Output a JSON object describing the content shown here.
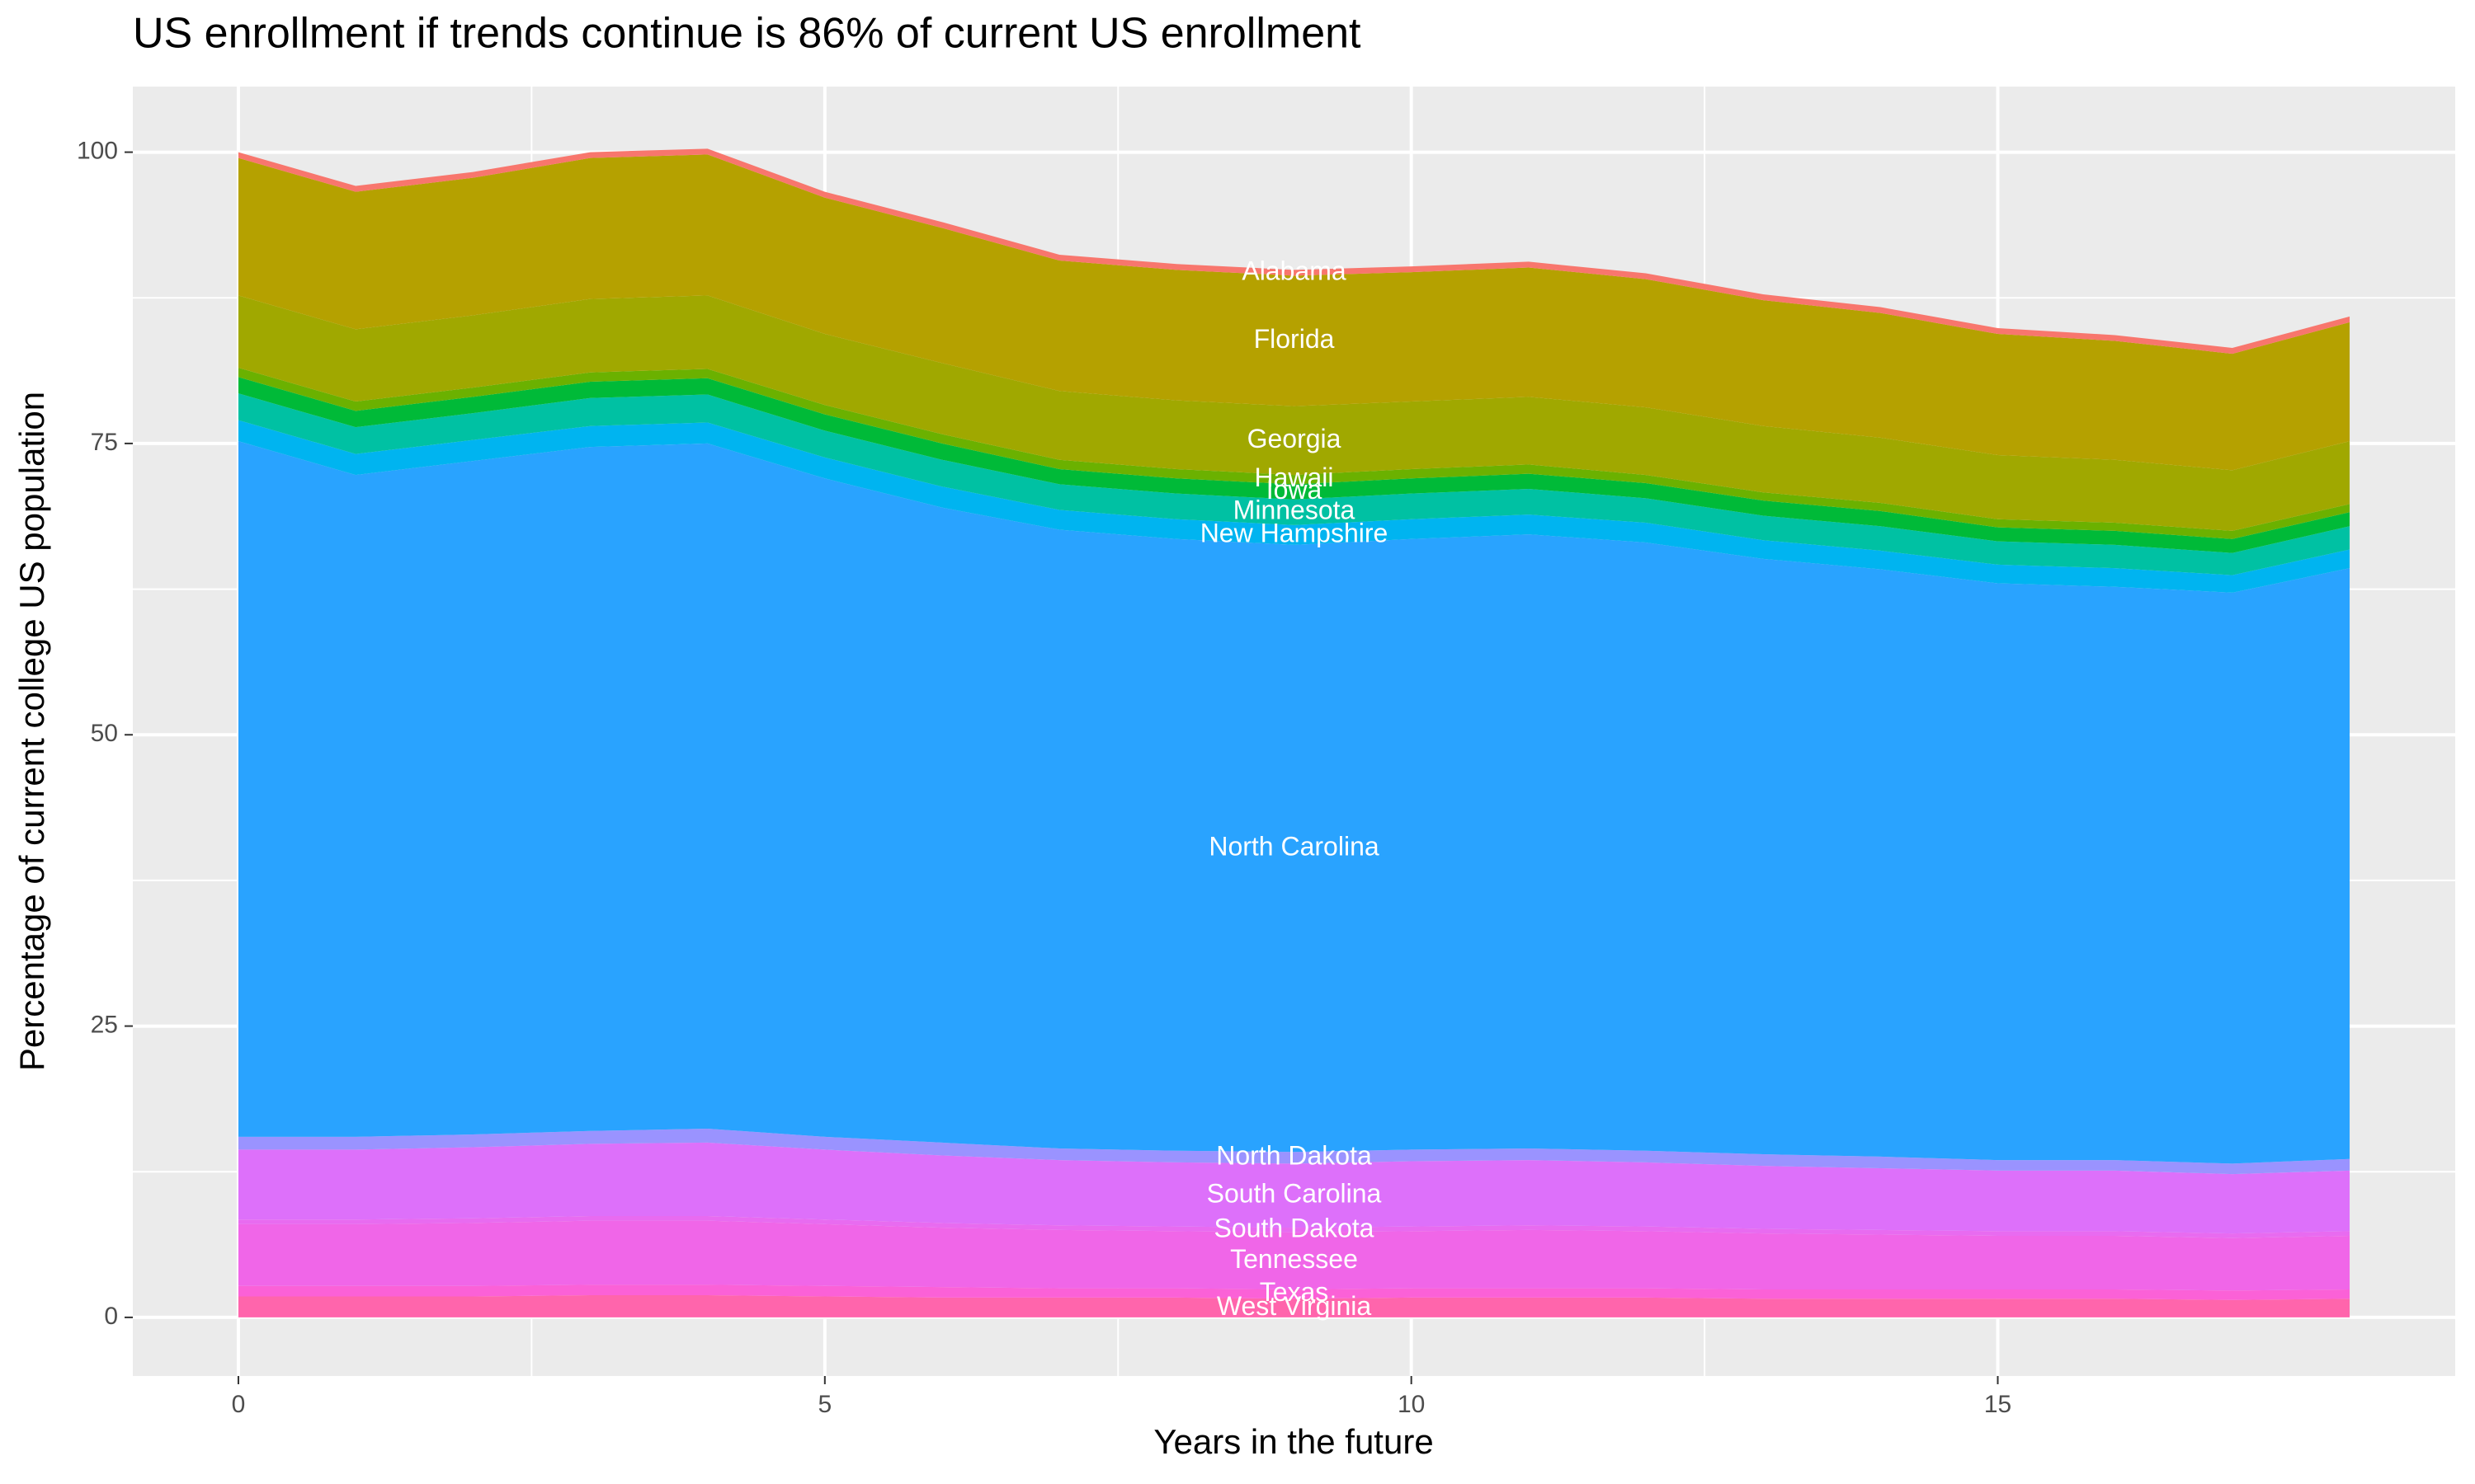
{
  "chart_data": {
    "type": "stacked_area",
    "title": "US enrollment if trends continue is 86% of current US enrollment",
    "x_label": "Years in the future",
    "y_label": "Percentage of current college US population",
    "x": [
      0,
      1,
      2,
      3,
      4,
      5,
      6,
      7,
      8,
      9,
      10,
      11,
      12,
      13,
      14,
      15,
      16,
      17,
      18
    ],
    "xlim": [
      -0.9,
      18.9
    ],
    "xticks": [
      0,
      5,
      10,
      15
    ],
    "ylim": [
      -5.03,
      105.63
    ],
    "yticks": [
      0,
      25,
      50,
      75,
      100
    ],
    "grid": true,
    "series": [
      {
        "name": "West Virginia",
        "color": "#ff65ac",
        "values": [
          1.8,
          1.8,
          1.8,
          1.9,
          1.9,
          1.8,
          1.7,
          1.7,
          1.7,
          1.6,
          1.7,
          1.7,
          1.7,
          1.6,
          1.6,
          1.6,
          1.6,
          1.5,
          1.6
        ]
      },
      {
        "name": "Texas",
        "color": "#fb61d7",
        "values": [
          0.9,
          0.9,
          0.9,
          0.9,
          0.9,
          0.9,
          0.9,
          0.8,
          0.8,
          0.8,
          0.8,
          0.8,
          0.8,
          0.8,
          0.8,
          0.8,
          0.8,
          0.8,
          0.8
        ]
      },
      {
        "name": "Tennessee",
        "color": "#f066e8",
        "values": [
          5.3,
          5.3,
          5.4,
          5.5,
          5.5,
          5.3,
          5.1,
          5.0,
          4.9,
          4.9,
          4.9,
          5.0,
          4.9,
          4.8,
          4.7,
          4.6,
          4.6,
          4.5,
          4.6
        ]
      },
      {
        "name": "South Dakota",
        "color": "#e86bf0",
        "values": [
          0.4,
          0.4,
          0.4,
          0.4,
          0.4,
          0.4,
          0.4,
          0.4,
          0.4,
          0.4,
          0.4,
          0.4,
          0.4,
          0.4,
          0.4,
          0.4,
          0.4,
          0.4,
          0.4
        ]
      },
      {
        "name": "South Carolina",
        "color": "#dd70fa",
        "values": [
          6.0,
          6.0,
          6.1,
          6.2,
          6.3,
          6.0,
          5.8,
          5.6,
          5.5,
          5.5,
          5.6,
          5.6,
          5.5,
          5.4,
          5.3,
          5.2,
          5.2,
          5.1,
          5.2
        ]
      },
      {
        "name": "North Dakota",
        "color": "#9a93ff",
        "values": [
          1.1,
          1.1,
          1.1,
          1.1,
          1.2,
          1.1,
          1.1,
          1.0,
          1.0,
          1.0,
          1.0,
          1.0,
          1.0,
          1.0,
          1.0,
          0.9,
          0.9,
          0.9,
          1.0
        ]
      },
      {
        "name": "North Carolina",
        "color": "#29a3ff",
        "values": [
          59.7,
          56.8,
          57.8,
          58.7,
          58.8,
          56.5,
          54.5,
          53.1,
          52.5,
          52.1,
          52.4,
          52.7,
          52.2,
          51.1,
          50.4,
          49.5,
          49.2,
          49.0,
          50.7
        ]
      },
      {
        "name": "New Hampshire",
        "color": "#00b4f0",
        "values": [
          1.8,
          1.8,
          1.8,
          1.8,
          1.8,
          1.8,
          1.8,
          1.7,
          1.7,
          1.7,
          1.7,
          1.7,
          1.7,
          1.6,
          1.6,
          1.6,
          1.6,
          1.5,
          1.6
        ]
      },
      {
        "name": "Minnesota",
        "color": "#00c1a3",
        "values": [
          2.3,
          2.3,
          2.3,
          2.4,
          2.4,
          2.3,
          2.3,
          2.2,
          2.2,
          2.2,
          2.2,
          2.2,
          2.1,
          2.1,
          2.1,
          2.0,
          2.0,
          1.9,
          2.0
        ]
      },
      {
        "name": "Iowa",
        "color": "#00ba38",
        "values": [
          1.4,
          1.4,
          1.4,
          1.4,
          1.4,
          1.4,
          1.4,
          1.3,
          1.3,
          1.3,
          1.3,
          1.3,
          1.3,
          1.3,
          1.3,
          1.2,
          1.2,
          1.2,
          1.2
        ]
      },
      {
        "name": "Hawaii",
        "color": "#6bb100",
        "values": [
          0.8,
          0.8,
          0.8,
          0.8,
          0.8,
          0.8,
          0.8,
          0.8,
          0.8,
          0.8,
          0.8,
          0.8,
          0.7,
          0.7,
          0.7,
          0.7,
          0.7,
          0.7,
          0.7
        ]
      },
      {
        "name": "Georgia",
        "color": "#a0a800",
        "values": [
          6.2,
          6.2,
          6.2,
          6.3,
          6.3,
          6.1,
          6.1,
          5.9,
          5.9,
          5.9,
          5.8,
          5.8,
          5.8,
          5.7,
          5.6,
          5.5,
          5.4,
          5.2,
          5.4
        ]
      },
      {
        "name": "Florida",
        "color": "#b5a100",
        "values": [
          11.8,
          11.8,
          11.8,
          12.1,
          12.1,
          11.7,
          11.6,
          11.2,
          11.2,
          11.2,
          11.1,
          11.1,
          11.0,
          10.8,
          10.7,
          10.4,
          10.2,
          10.0,
          10.2
        ]
      },
      {
        "name": "Alabama",
        "color": "#f8766d",
        "values": [
          0.5,
          0.5,
          0.5,
          0.5,
          0.5,
          0.5,
          0.5,
          0.5,
          0.5,
          0.5,
          0.5,
          0.5,
          0.5,
          0.5,
          0.5,
          0.5,
          0.5,
          0.5,
          0.5
        ]
      }
    ]
  }
}
